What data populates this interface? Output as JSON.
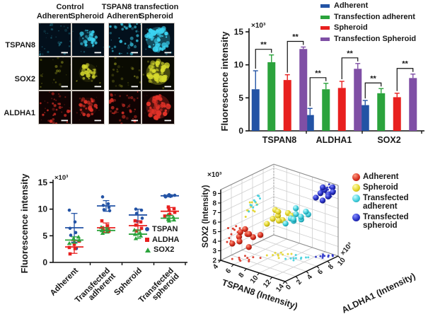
{
  "microscopy": {
    "col_groups": [
      "Control",
      "TSPAN8 transfection"
    ],
    "col_subs": [
      "Adherent",
      "Spheroid",
      "Adherent",
      "Spheroid"
    ],
    "rows": [
      {
        "label": "TSPAN8",
        "color": "#3bd4f2",
        "bg": "#03101c",
        "cells": [
          "scattered-dim",
          "speckled-blob",
          "scattered",
          "bright-blob"
        ]
      },
      {
        "label": "SOX2",
        "color": "#d6da2e",
        "bg": "#0a0b02",
        "cells": [
          "sparse-dim",
          "speckled-blob",
          "sparse-dim",
          "bright-blob"
        ]
      },
      {
        "label": "ALDHA1",
        "color": "#e23228",
        "bg": "#100303",
        "cells": [
          "scattered",
          "speckled-blob",
          "scattered",
          "bright-blob"
        ]
      }
    ],
    "scalebar_color": "#ffffff"
  },
  "chart_data": [
    {
      "type": "bar",
      "categories": [
        "TSPAN8",
        "ALDHA1",
        "SOX2"
      ],
      "series": [
        {
          "name": "Adherent",
          "color": "#2353a5",
          "values": [
            6.3,
            2.4,
            3.9
          ],
          "errors": [
            2.8,
            1.0,
            0.7
          ]
        },
        {
          "name": "Transfection adherent",
          "color": "#2ba33c",
          "values": [
            10.4,
            6.3,
            5.7
          ],
          "errors": [
            1.1,
            0.9,
            0.7
          ]
        },
        {
          "name": "Spheroid",
          "color": "#e8201f",
          "values": [
            7.7,
            6.5,
            5.1
          ],
          "errors": [
            0.8,
            1.0,
            0.6
          ]
        },
        {
          "name": "Transfection Spheroid",
          "color": "#7f4fa5",
          "values": [
            12.4,
            9.4,
            8.0
          ],
          "errors": [
            0.3,
            0.8,
            0.6
          ]
        }
      ],
      "ylabel": "Fluorescence intensity",
      "y_unit": "×10³",
      "ylim": [
        0,
        15
      ],
      "yticks": [
        0,
        5,
        10,
        15
      ],
      "legend_position": "top-right",
      "significance": [
        {
          "cat": 0,
          "from": 0,
          "to": 1,
          "label": "**"
        },
        {
          "cat": 0,
          "from": 2,
          "to": 3,
          "label": "**"
        },
        {
          "cat": 1,
          "from": 0,
          "to": 1,
          "label": "**"
        },
        {
          "cat": 1,
          "from": 2,
          "to": 3,
          "label": "**"
        },
        {
          "cat": 2,
          "from": 0,
          "to": 1,
          "label": "**"
        },
        {
          "cat": 2,
          "from": 2,
          "to": 3,
          "label": "**"
        }
      ]
    },
    {
      "type": "scatter",
      "categories": [
        "Adherent",
        "Transfected adherent",
        "Spheroid",
        "Transfected spheroid"
      ],
      "ylabel": "Fluorescence intensity",
      "y_unit": "×10³",
      "ylim": [
        0,
        15
      ],
      "yticks": [
        0,
        5,
        10,
        15
      ],
      "legend_position": "inside-right",
      "series": [
        {
          "name": "TSPAN",
          "color": "#2353a5",
          "marker": "circle",
          "points": [
            [
              9.8,
              7.6,
              6.4,
              5.6,
              5.1,
              2.6
            ],
            [
              12.3,
              11.0,
              10.7,
              10.3,
              9.9,
              9.7
            ],
            [
              10.0,
              9.8,
              9.2,
              8.3,
              7.7
            ],
            [
              12.7,
              12.6,
              12.6,
              12.5,
              12.4,
              12.3
            ]
          ],
          "means": [
            6.5,
            10.6,
            8.9,
            12.5
          ],
          "sds": [
            2.7,
            1.0,
            1.1,
            0.2
          ]
        },
        {
          "name": "ALDHA",
          "color": "#e8201f",
          "marker": "square",
          "points": [
            [
              4.0,
              3.4,
              2.8,
              2.6,
              1.6
            ],
            [
              7.8,
              6.9,
              6.5,
              6.2,
              6.0,
              5.9
            ],
            [
              7.8,
              7.6,
              7.0,
              6.4,
              5.9
            ],
            [
              10.4,
              10.1,
              9.8,
              9.4,
              9.0,
              8.7
            ]
          ],
          "means": [
            2.9,
            6.5,
            6.9,
            9.6
          ],
          "sds": [
            1.2,
            0.9,
            0.9,
            0.7
          ]
        },
        {
          "name": "SOX2",
          "color": "#2ba33c",
          "marker": "triangle",
          "points": [
            [
              4.8,
              4.5,
              4.2,
              3.9,
              3.6
            ],
            [
              6.6,
              6.3,
              6.0,
              5.8,
              5.5
            ],
            [
              6.1,
              5.6,
              5.3,
              5.0,
              4.5
            ],
            [
              8.9,
              8.5,
              8.2,
              8.0,
              7.8
            ]
          ],
          "means": [
            4.2,
            6.0,
            5.3,
            8.3
          ],
          "sds": [
            0.6,
            0.5,
            0.8,
            0.5
          ]
        }
      ]
    },
    {
      "type": "scatter3d",
      "xlabel": "TSPAN8 (Intensity)",
      "ylabel": "ALDHA1 (Intensity)",
      "zlabel": "SOX2 (Intensity)",
      "unit": "×10³",
      "xticks": [
        4,
        6,
        8,
        10,
        12,
        14
      ],
      "yticks": [
        0,
        2,
        4,
        6,
        8,
        10
      ],
      "zticks": [
        2,
        3,
        4,
        5,
        6,
        7,
        8,
        9
      ],
      "series": [
        {
          "name": "Adherent",
          "color": "#d93425",
          "light": "#ff9a80",
          "dark": "#8f1205",
          "points": [
            [
              4.8,
              1.2,
              3.6
            ],
            [
              5.2,
              2.0,
              4.2
            ],
            [
              5.6,
              1.6,
              3.9
            ],
            [
              6.0,
              2.6,
              4.5
            ],
            [
              6.4,
              3.2,
              4.1
            ],
            [
              5.4,
              2.9,
              4.8
            ],
            [
              6.8,
              1.9,
              3.5
            ],
            [
              7.2,
              3.6,
              4.4
            ],
            [
              5.9,
              1.4,
              5.0
            ],
            [
              6.5,
              2.3,
              4.7
            ]
          ]
        },
        {
          "name": "Spheroid",
          "color": "#e3d52c",
          "light": "#fffbb0",
          "dark": "#a89708",
          "points": [
            [
              7.3,
              4.7,
              5.3
            ],
            [
              7.8,
              5.2,
              5.8
            ],
            [
              8.2,
              5.7,
              6.1
            ],
            [
              8.6,
              6.1,
              5.6
            ],
            [
              9.0,
              6.6,
              6.3
            ],
            [
              7.6,
              5.9,
              6.5
            ],
            [
              8.9,
              5.0,
              5.9
            ],
            [
              8.1,
              6.4,
              5.4
            ],
            [
              9.3,
              6.9,
              6.0
            ],
            [
              8.4,
              5.5,
              6.6
            ]
          ]
        },
        {
          "name": "Transfected adherent",
          "color": "#45d0dd",
          "light": "#c8fcff",
          "dark": "#0c8a9a",
          "points": [
            [
              9.7,
              5.3,
              5.7
            ],
            [
              10.1,
              5.8,
              6.2
            ],
            [
              10.5,
              6.3,
              6.6
            ],
            [
              10.9,
              6.8,
              6.0
            ],
            [
              11.3,
              7.2,
              6.8
            ],
            [
              10.3,
              6.1,
              5.9
            ],
            [
              11.1,
              6.5,
              6.4
            ],
            [
              9.9,
              7.0,
              6.9
            ],
            [
              10.7,
              5.6,
              6.3
            ],
            [
              11.5,
              7.4,
              6.5
            ]
          ]
        },
        {
          "name": "Transfected spheroid",
          "color": "#2a33c8",
          "light": "#8890ff",
          "dark": "#0d1275",
          "points": [
            [
              12.1,
              8.1,
              8.2
            ],
            [
              12.4,
              8.6,
              8.6
            ],
            [
              12.7,
              9.0,
              8.9
            ],
            [
              13.0,
              9.4,
              8.4
            ],
            [
              13.3,
              9.8,
              9.1
            ],
            [
              12.3,
              9.2,
              8.8
            ],
            [
              12.9,
              8.4,
              8.0
            ],
            [
              13.5,
              9.6,
              8.7
            ],
            [
              12.6,
              8.8,
              9.2
            ],
            [
              13.2,
              9.1,
              8.3
            ]
          ]
        }
      ]
    }
  ]
}
